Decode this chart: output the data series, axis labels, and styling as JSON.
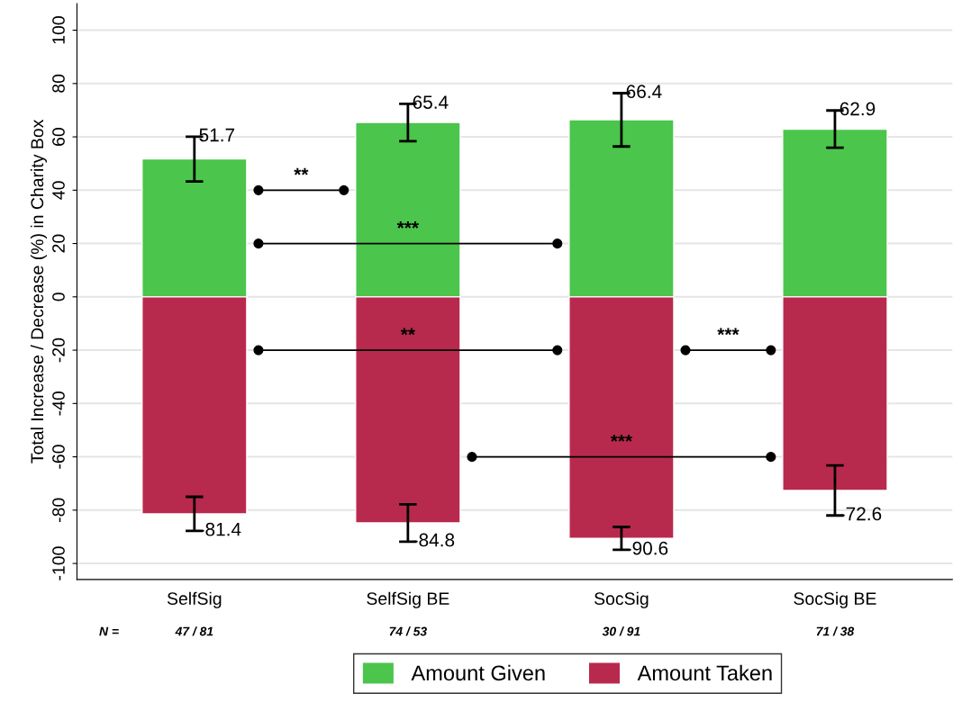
{
  "chart_data": {
    "type": "bar",
    "ylabel": "Total Increase / Decrease (%) in Charity Box",
    "categories": [
      "SelfSig",
      "SelfSig BE",
      "SocSig",
      "SocSig BE"
    ],
    "series": [
      {
        "name": "Amount Given",
        "color": "#4bc54b",
        "values": [
          51.7,
          65.4,
          66.4,
          62.9
        ],
        "errors": [
          8.4,
          7,
          10,
          7
        ]
      },
      {
        "name": "Amount Taken",
        "color": "#b82a4d",
        "values": [
          -81.4,
          -84.8,
          -90.6,
          -72.6
        ],
        "errors": [
          6.4,
          7,
          4.3,
          9.4
        ]
      }
    ],
    "stacked": true,
    "data_labels": true,
    "ylim": [
      -106,
      110
    ],
    "yticks": [
      -100,
      -80,
      -60,
      -40,
      -20,
      0,
      20,
      40,
      60,
      80,
      100
    ],
    "grid": "y",
    "legend": "bottom",
    "annotations": [
      "**",
      "***",
      "**",
      "***",
      "***",
      "N =",
      "47 / 81",
      "74 / 53",
      "30 / 91",
      "71 / 38"
    ]
  }
}
